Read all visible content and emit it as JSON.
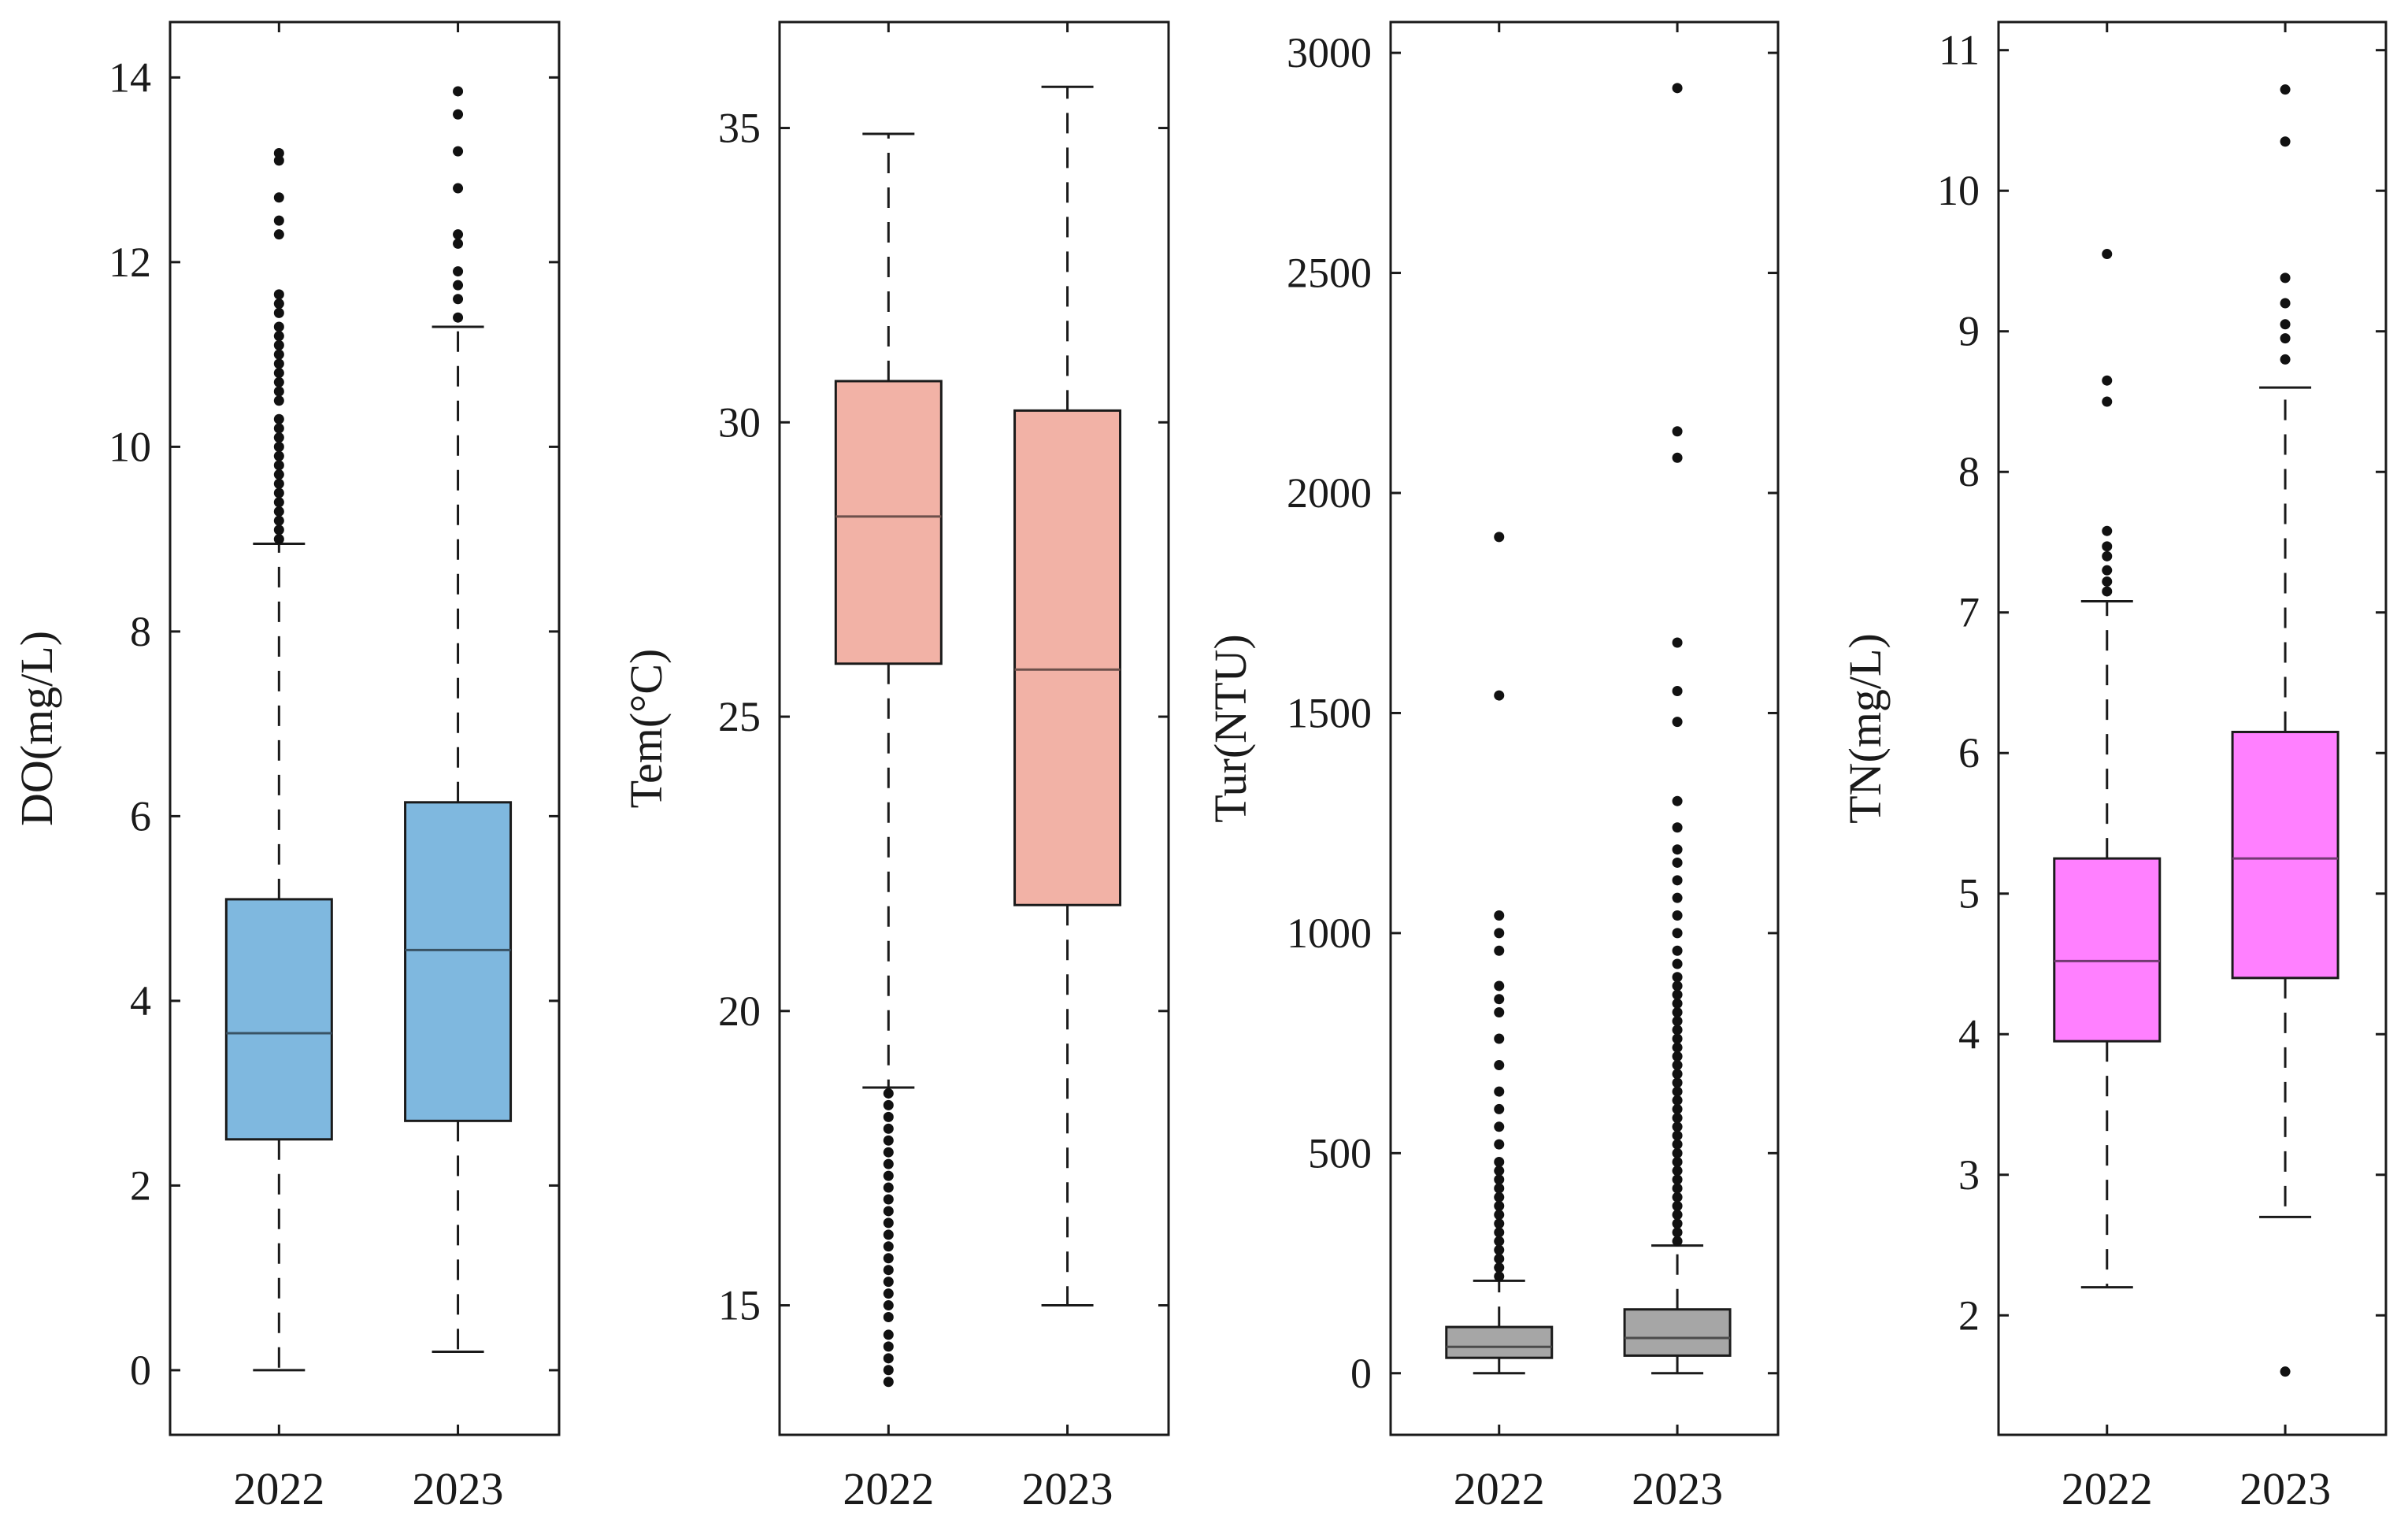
{
  "chart_data": [
    {
      "type": "boxplot",
      "ylabel": "DO(mg/L)",
      "categories": [
        "2022",
        "2023"
      ],
      "ylim": [
        -0.7,
        14.6
      ],
      "yticks": [
        0,
        2,
        4,
        6,
        8,
        10,
        12,
        14
      ],
      "box_color": "#7fb8df",
      "series": [
        {
          "name": "2022",
          "whisker_low": 0.0,
          "q1": 2.5,
          "median": 3.65,
          "q3": 5.1,
          "whisker_high": 8.95,
          "outliers": [
            9.0,
            9.1,
            9.2,
            9.3,
            9.4,
            9.5,
            9.6,
            9.7,
            9.8,
            9.9,
            10.0,
            10.1,
            10.2,
            10.3,
            10.5,
            10.6,
            10.7,
            10.8,
            10.9,
            11.0,
            11.1,
            11.2,
            11.3,
            11.45,
            11.55,
            11.65,
            12.3,
            12.45,
            12.7,
            13.1,
            13.18
          ]
        },
        {
          "name": "2023",
          "whisker_low": 0.2,
          "q1": 2.7,
          "median": 4.55,
          "q3": 6.15,
          "whisker_high": 11.3,
          "outliers": [
            11.4,
            11.6,
            11.75,
            11.9,
            12.2,
            12.3,
            12.8,
            13.2,
            13.6,
            13.85
          ]
        }
      ]
    },
    {
      "type": "boxplot",
      "ylabel": "Tem(°C)",
      "categories": [
        "2022",
        "2023"
      ],
      "ylim": [
        12.8,
        36.8
      ],
      "yticks": [
        15,
        20,
        25,
        30,
        35
      ],
      "box_color": "#f2b2a6",
      "series": [
        {
          "name": "2022",
          "whisker_low": 18.7,
          "q1": 25.9,
          "median": 28.4,
          "q3": 30.7,
          "whisker_high": 34.9,
          "outliers": [
            13.7,
            13.9,
            14.1,
            14.3,
            14.5,
            14.8,
            15.0,
            15.2,
            15.4,
            15.6,
            15.8,
            16.0,
            16.2,
            16.4,
            16.6,
            16.8,
            17.0,
            17.2,
            17.4,
            17.6,
            17.8,
            18.0,
            18.2,
            18.4,
            18.6
          ]
        },
        {
          "name": "2023",
          "whisker_low": 15.0,
          "q1": 21.8,
          "median": 25.8,
          "q3": 30.2,
          "whisker_high": 35.7,
          "outliers": []
        }
      ]
    },
    {
      "type": "boxplot",
      "ylabel": "Tur(NTU)",
      "categories": [
        "2022",
        "2023"
      ],
      "ylim": [
        -140,
        3070
      ],
      "yticks": [
        0,
        500,
        1000,
        1500,
        2000,
        2500,
        3000
      ],
      "box_color": "#a6a6a6",
      "series": [
        {
          "name": "2022",
          "whisker_low": 0,
          "q1": 35,
          "median": 60,
          "q3": 105,
          "whisker_high": 210,
          "outliers": [
            220,
            240,
            260,
            280,
            300,
            320,
            340,
            360,
            380,
            400,
            420,
            440,
            460,
            480,
            520,
            560,
            600,
            640,
            700,
            760,
            820,
            850,
            880,
            960,
            1000,
            1040,
            1540,
            1900
          ]
        },
        {
          "name": "2023",
          "whisker_low": 0,
          "q1": 40,
          "median": 80,
          "q3": 145,
          "whisker_high": 290,
          "outliers": [
            300,
            320,
            340,
            360,
            380,
            400,
            420,
            440,
            460,
            480,
            500,
            520,
            540,
            560,
            580,
            600,
            620,
            640,
            660,
            680,
            700,
            720,
            740,
            760,
            780,
            800,
            820,
            840,
            860,
            880,
            900,
            930,
            960,
            1000,
            1040,
            1080,
            1120,
            1160,
            1190,
            1240,
            1300,
            1480,
            1550,
            1660,
            2080,
            2140,
            2920
          ]
        }
      ]
    },
    {
      "type": "boxplot",
      "ylabel": "TN(mg/L)",
      "categories": [
        "2022",
        "2023"
      ],
      "ylim": [
        1.15,
        11.2
      ],
      "yticks": [
        2,
        3,
        4,
        5,
        6,
        7,
        8,
        9,
        10,
        11
      ],
      "box_color": "#ff80ff",
      "series": [
        {
          "name": "2022",
          "whisker_low": 2.2,
          "q1": 3.95,
          "median": 4.52,
          "q3": 5.25,
          "whisker_high": 7.08,
          "outliers": [
            7.15,
            7.22,
            7.3,
            7.4,
            7.47,
            7.58,
            8.5,
            8.65,
            9.55
          ]
        },
        {
          "name": "2023",
          "whisker_low": 2.7,
          "q1": 4.4,
          "median": 5.25,
          "q3": 6.15,
          "whisker_high": 8.6,
          "outliers": [
            1.6,
            8.8,
            8.95,
            9.05,
            9.2,
            9.38,
            10.35,
            10.72
          ]
        }
      ]
    }
  ]
}
